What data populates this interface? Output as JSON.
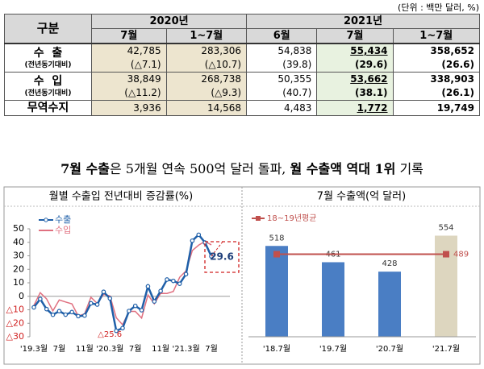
{
  "unit": "(단위 : 백만 달러, %)",
  "table": {
    "corner": "구분",
    "years": [
      "2020년",
      "2021년"
    ],
    "columns": [
      "7월",
      "1~7월",
      "6월",
      "7월",
      "1~7월"
    ],
    "rows": [
      {
        "label": "수  출",
        "sub": "(전년동기대비)",
        "cells": [
          [
            "42,785",
            "(△7.1)"
          ],
          [
            "283,306",
            "(△10.7)"
          ],
          [
            "54,838",
            "(39.8)"
          ],
          [
            "55,434",
            "(29.6)"
          ],
          [
            "358,652",
            "(26.6)"
          ]
        ]
      },
      {
        "label": "수  입",
        "sub": "(전년동기대비)",
        "cells": [
          [
            "38,849",
            "(△11.2)"
          ],
          [
            "268,738",
            "(△9.3)"
          ],
          [
            "50,355",
            "(40.7)"
          ],
          [
            "53,662",
            "(38.1)"
          ],
          [
            "338,903",
            "(26.1)"
          ]
        ]
      },
      {
        "label": "무역수지",
        "cells": [
          [
            "3,936"
          ],
          [
            "14,568"
          ],
          [
            "4,483"
          ],
          [
            "1,772"
          ],
          [
            "19,749"
          ]
        ]
      }
    ]
  },
  "headline": [
    {
      "text": "7월 수출",
      "bold": true
    },
    {
      "text": "은 5개월 연속 500억 달러 돌파, "
    },
    {
      "text": "월 수출액 역대 1위",
      "bold": true
    },
    {
      "text": " 기록"
    }
  ],
  "chart_data": [
    {
      "type": "line",
      "title": "월별 수출입 전년대비 증감률(%)",
      "categories": [
        "'19.3월",
        null,
        null,
        null,
        "7월",
        null,
        null,
        null,
        "11월",
        null,
        null,
        null,
        "'20.3월",
        null,
        null,
        null,
        "7월",
        null,
        null,
        null,
        "11월",
        null,
        null,
        null,
        "'21.3월",
        null,
        null,
        null,
        "7월"
      ],
      "series": [
        {
          "name": "수출",
          "color": "#1f5fa8",
          "values": [
            -8.2,
            -2.0,
            -9.5,
            -13.7,
            -11.0,
            -13.6,
            -11.7,
            -14.7,
            -14.3,
            -5.2,
            -6.1,
            3.3,
            -1.6,
            -25.6,
            -23.6,
            -10.9,
            -7.1,
            -10.3,
            7.3,
            -3.8,
            3.9,
            12.4,
            11.4,
            9.3,
            16.4,
            41.2,
            45.6,
            39.8,
            29.6
          ]
        },
        {
          "name": "수입",
          "color": "#e07080",
          "values": [
            -6.8,
            2.7,
            -1.9,
            -10.8,
            -2.7,
            -4.2,
            -5.6,
            -14.6,
            -13.0,
            -0.7,
            -5.3,
            1.4,
            0.3,
            -15.9,
            -21.1,
            -11.2,
            -11.2,
            -16.1,
            1.0,
            -5.6,
            2.2,
            2.1,
            3.6,
            14.1,
            18.8,
            33.9,
            37.9,
            40.7,
            38.1
          ]
        }
      ],
      "ylim": [
        -30,
        50
      ],
      "yticks": [
        50,
        40,
        30,
        20,
        10,
        0,
        {
          "value": -10,
          "label": "△10"
        },
        {
          "value": -20,
          "label": "△20"
        },
        {
          "value": -30,
          "label": "△30"
        }
      ],
      "annotations": [
        "△25.6"
      ],
      "legend": "top-left"
    },
    {
      "type": "bar",
      "title": "7월 수출액(억 달러)",
      "categories": [
        "'18.7월",
        "'19.7월",
        "'20.7월",
        "'21.7월"
      ],
      "values": [
        518,
        461,
        428,
        554
      ],
      "colors": [
        "#4a7ec4",
        "#4a7ec4",
        "#4a7ec4",
        "#ddd6bf"
      ],
      "reference": {
        "name": "18~19년평균",
        "value": 489,
        "color": "#c0504d"
      },
      "ylim": [
        200,
        640
      ]
    }
  ]
}
